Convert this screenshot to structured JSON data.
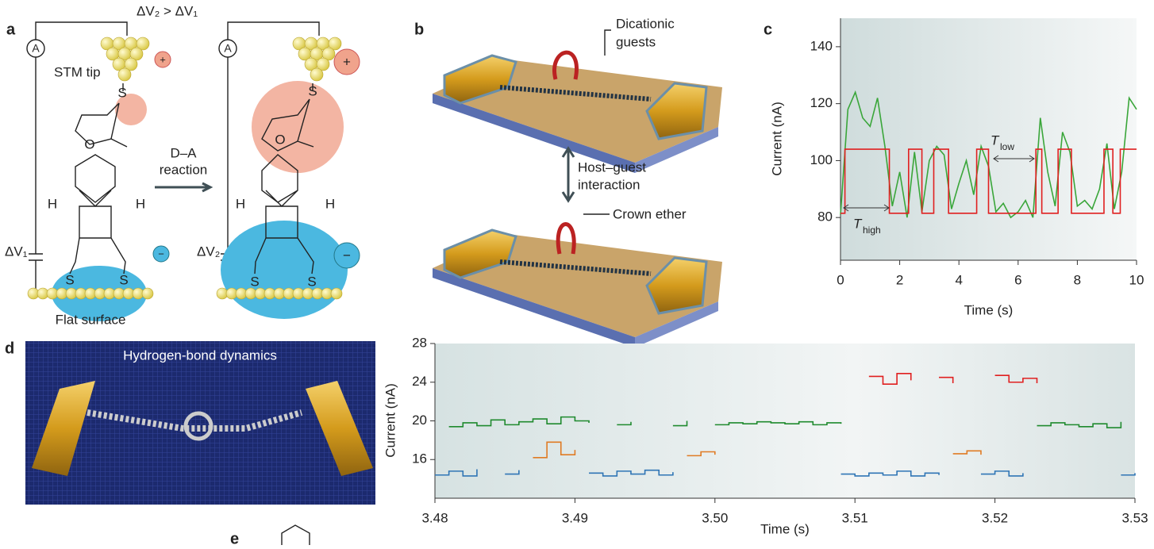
{
  "panels": {
    "a": {
      "label": "a",
      "bias_relation": "ΔV₂ > ΔV₁",
      "ammeter": "A",
      "stm_tip": "STM tip",
      "plus": "+",
      "minus": "−",
      "sulfur": "S",
      "oxygen": "O",
      "hydrogen": "H",
      "reaction": [
        "D–A",
        "reaction"
      ],
      "bias_1": "ΔV₁",
      "bias_2": "ΔV₂",
      "surface": "Flat surface"
    },
    "b": {
      "label": "b",
      "guests": [
        "Dicationic",
        "guests"
      ],
      "interaction": [
        "Host–guest",
        "interaction"
      ],
      "crown": "Crown ether"
    },
    "c": {
      "label": "c"
    },
    "d": {
      "label": "d",
      "image_title": "Hydrogen-bond dynamics"
    },
    "e": {
      "label": "e"
    }
  },
  "chart_data": [
    {
      "type": "line",
      "xlabel": "Time (s)",
      "ylabel": "Current (nA)",
      "xlim": [
        0,
        10
      ],
      "xticks": [
        0,
        2,
        4,
        6,
        8,
        10
      ],
      "ylim": [
        65,
        150
      ],
      "yticks": [
        80,
        100,
        120,
        140
      ],
      "annotations": [
        {
          "text": "T",
          "subscript": "low"
        },
        {
          "text": "T",
          "subscript": "high"
        }
      ],
      "series": [
        {
          "color": "#3aa63a",
          "step": false,
          "x": [
            0,
            0.25,
            0.5,
            0.75,
            1,
            1.25,
            1.5,
            1.75,
            2,
            2.25,
            2.5,
            2.75,
            3,
            3.25,
            3.5,
            3.75,
            4,
            4.25,
            4.5,
            4.75,
            5,
            5.25,
            5.5,
            5.75,
            6,
            6.25,
            6.5,
            6.75,
            7,
            7.25,
            7.5,
            7.75,
            8,
            8.25,
            8.5,
            8.75,
            9,
            9.25,
            9.5,
            9.75,
            10
          ],
          "values": [
            81,
            118,
            124,
            115,
            112,
            122,
            105,
            84,
            96,
            80,
            103,
            82,
            100,
            105,
            102,
            83,
            92,
            100,
            88,
            105,
            98,
            82,
            85,
            80,
            82,
            86,
            80,
            115,
            96,
            84,
            110,
            103,
            84,
            86,
            83,
            90,
            106,
            83,
            96,
            122,
            118
          ]
        },
        {
          "color": "#e02020",
          "step": true,
          "x": [
            0,
            0.15,
            1.65,
            2.3,
            2.75,
            3.15,
            3.65,
            4.6,
            5,
            6.6,
            6.8,
            7.35,
            7.8,
            8.9,
            9.2,
            9.45,
            10
          ],
          "values": [
            81.5,
            104,
            81.5,
            104,
            81.5,
            104,
            81.5,
            104,
            81.5,
            104,
            81.5,
            104,
            81.5,
            104,
            81.5,
            104,
            104
          ]
        }
      ]
    },
    {
      "type": "line",
      "xlabel": "Time (s)",
      "ylabel": "Current (nA)",
      "xlim": [
        3.48,
        3.53
      ],
      "xticks": [
        3.48,
        3.49,
        {
          "value": 3.5,
          "label": "3.50"
        },
        3.51,
        3.52,
        3.53
      ],
      "ylim": [
        12,
        28
      ],
      "yticks": [
        16,
        20,
        24,
        28
      ],
      "x": [
        3.48,
        3.481,
        3.482,
        3.483,
        3.484,
        3.485,
        3.486,
        3.487,
        3.488,
        3.489,
        3.49,
        3.491,
        3.492,
        3.493,
        3.494,
        3.495,
        3.496,
        3.497,
        3.498,
        3.499,
        3.5,
        3.501,
        3.502,
        3.503,
        3.504,
        3.505,
        3.506,
        3.507,
        3.508,
        3.509,
        3.51,
        3.511,
        3.512,
        3.513,
        3.514,
        3.515,
        3.516,
        3.517,
        3.518,
        3.519,
        3.52,
        3.521,
        3.522,
        3.523,
        3.524,
        3.525,
        3.526,
        3.527,
        3.528,
        3.529,
        3.53
      ],
      "series": [
        {
          "color": "#1f8a2e",
          "step": true,
          "values": [
            null,
            19.4,
            19.8,
            19.5,
            20.1,
            19.6,
            19.9,
            20.2,
            19.7,
            20.4,
            20.0,
            19.8,
            null,
            19.6,
            19.9,
            null,
            null,
            19.5,
            20.0,
            null,
            19.6,
            19.8,
            19.7,
            19.9,
            19.8,
            19.7,
            19.9,
            19.6,
            19.8,
            19.7,
            null,
            null,
            null,
            null,
            null,
            null,
            null,
            null,
            null,
            null,
            null,
            null,
            null,
            19.5,
            19.8,
            19.6,
            19.4,
            19.7,
            19.3,
            19.9,
            null
          ]
        },
        {
          "color": "#2f75b5",
          "step": true,
          "values": [
            14.4,
            14.8,
            14.3,
            15.0,
            null,
            14.5,
            14.9,
            null,
            null,
            null,
            null,
            14.6,
            14.3,
            14.8,
            14.5,
            14.9,
            14.4,
            14.7,
            null,
            null,
            null,
            null,
            null,
            null,
            null,
            null,
            null,
            null,
            null,
            14.5,
            14.3,
            14.6,
            14.4,
            14.8,
            14.3,
            14.6,
            14.4,
            null,
            null,
            14.5,
            14.8,
            14.3,
            14.6,
            null,
            null,
            null,
            null,
            null,
            null,
            14.4,
            14.6
          ]
        },
        {
          "color": "#e07b24",
          "step": true,
          "values": [
            null,
            null,
            null,
            null,
            null,
            null,
            null,
            16.2,
            17.8,
            16.5,
            17.0,
            null,
            null,
            null,
            null,
            null,
            null,
            null,
            16.4,
            16.8,
            16.5,
            null,
            null,
            null,
            null,
            null,
            null,
            null,
            null,
            null,
            null,
            null,
            null,
            null,
            null,
            null,
            null,
            16.6,
            16.9,
            16.5,
            null,
            null,
            null,
            null,
            null,
            null,
            null,
            null,
            null,
            null,
            null
          ]
        },
        {
          "color": "#e02020",
          "step": true,
          "values": [
            null,
            null,
            null,
            null,
            null,
            null,
            null,
            null,
            null,
            null,
            null,
            null,
            null,
            null,
            null,
            null,
            null,
            null,
            null,
            null,
            null,
            null,
            null,
            null,
            null,
            null,
            null,
            null,
            null,
            null,
            null,
            24.6,
            23.8,
            24.9,
            24.2,
            null,
            24.5,
            23.9,
            null,
            null,
            24.7,
            24.0,
            24.4,
            23.9,
            null,
            null,
            null,
            null,
            null,
            null,
            null
          ]
        }
      ]
    }
  ]
}
